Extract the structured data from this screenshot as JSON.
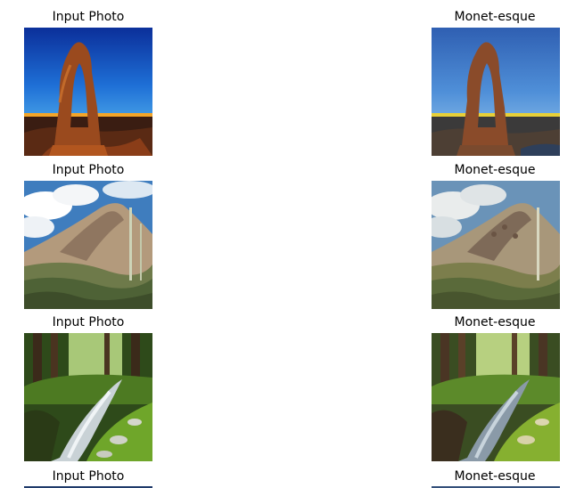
{
  "rows": [
    {
      "input_label": "Input Photo",
      "output_label": "Monet-esque",
      "input_image": "arch-sunset-photo",
      "output_image": "arch-sunset-monet"
    },
    {
      "input_label": "Input Photo",
      "output_label": "Monet-esque",
      "input_image": "desert-mountain-photo",
      "output_image": "desert-mountain-monet"
    },
    {
      "input_label": "Input Photo",
      "output_label": "Monet-esque",
      "input_image": "forest-stream-photo",
      "output_image": "forest-stream-monet"
    },
    {
      "input_label": "Input Photo",
      "output_label": "Monet-esque"
    }
  ]
}
